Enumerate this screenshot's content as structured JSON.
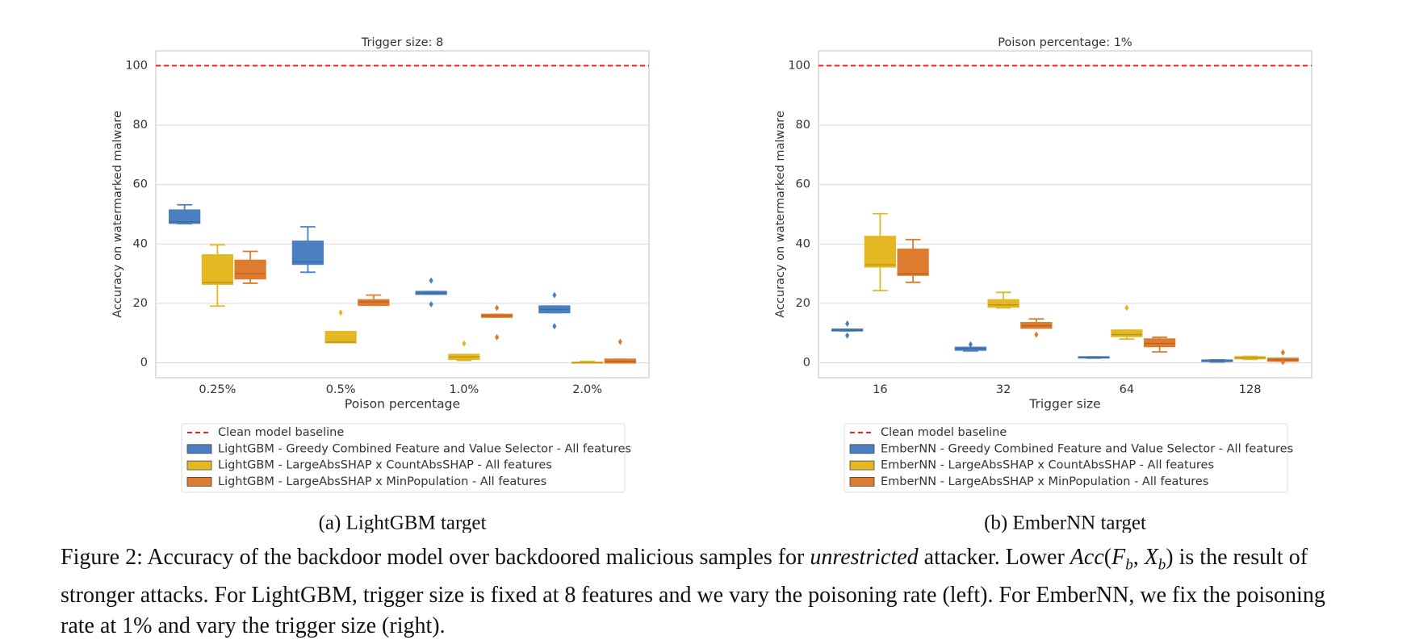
{
  "chart_data": [
    {
      "type": "box",
      "title": "Trigger size: 8",
      "xlabel": "Poison percentage",
      "ylabel": "Accuracy on watermarked malware",
      "subcaption": "(a) LightGBM target",
      "categories": [
        "0.25%",
        "0.5%",
        "1.0%",
        "2.0%"
      ],
      "ylim": [
        -5,
        105
      ],
      "yticks": [
        0,
        20,
        40,
        60,
        80,
        100
      ],
      "grid": true,
      "baseline": {
        "name": "Clean model baseline",
        "value": 100,
        "color": "#e8201e"
      },
      "series": [
        {
          "name": "LightGBM - Greedy Combined Feature and Value Selector - All features",
          "color": "#4a80c1",
          "boxes": [
            {
              "min": 46.8,
              "q1": 47,
              "median": 47.5,
              "q3": 51.4,
              "max": 53.2,
              "outliers": []
            },
            {
              "min": 30.5,
              "q1": 33.2,
              "median": 34,
              "q3": 40.9,
              "max": 45.8,
              "outliers": []
            },
            {
              "min": 23.1,
              "q1": 23.1,
              "median": 23.5,
              "q3": 24,
              "max": 24,
              "outliers": [
                27.7,
                19.7
              ]
            },
            {
              "min": 16.9,
              "q1": 16.9,
              "median": 18,
              "q3": 19.1,
              "max": 19.1,
              "outliers": [
                22.8,
                12.3
              ]
            }
          ]
        },
        {
          "name": "LightGBM - LargeAbsSHAP x CountAbsSHAP - All features",
          "color": "#e4b823",
          "boxes": [
            {
              "min": 19.1,
              "q1": 26.5,
              "median": 27,
              "q3": 36.3,
              "max": 39.7,
              "outliers": []
            },
            {
              "min": 6.8,
              "q1": 6.8,
              "median": 7,
              "q3": 10.5,
              "max": 10.5,
              "outliers": [
                16.9
              ]
            },
            {
              "min": 0.8,
              "q1": 1.2,
              "median": 2,
              "q3": 2.8,
              "max": 2.8,
              "outliers": [
                6.5
              ]
            },
            {
              "min": 0,
              "q1": 0,
              "median": 0,
              "q3": 0.2,
              "max": 0.5,
              "outliers": []
            }
          ]
        },
        {
          "name": "LightGBM - LargeAbsSHAP x MinPopulation - All features",
          "color": "#de7b2e",
          "boxes": [
            {
              "min": 26.8,
              "q1": 28.3,
              "median": 30,
              "q3": 34.5,
              "max": 37.5,
              "outliers": []
            },
            {
              "min": 19.4,
              "q1": 19.4,
              "median": 20.5,
              "q3": 21.2,
              "max": 22.8,
              "outliers": []
            },
            {
              "min": 15.4,
              "q1": 15.4,
              "median": 15.8,
              "q3": 16.3,
              "max": 16.3,
              "outliers": [
                18.5,
                8.6
              ]
            },
            {
              "min": 0,
              "q1": 0,
              "median": 0.5,
              "q3": 1.2,
              "max": 1.2,
              "outliers": [
                7.1
              ]
            }
          ]
        }
      ]
    },
    {
      "type": "box",
      "title": "Poison percentage: 1%",
      "xlabel": "Trigger size",
      "ylabel": "Accuracy on watermarked malware",
      "subcaption": "(b) EmberNN target",
      "categories": [
        "16",
        "32",
        "64",
        "128"
      ],
      "ylim": [
        -5,
        105
      ],
      "yticks": [
        0,
        20,
        40,
        60,
        80,
        100
      ],
      "grid": true,
      "baseline": {
        "name": "Clean model baseline",
        "value": 100,
        "color": "#e8201e"
      },
      "series": [
        {
          "name": "EmberNN - Greedy Combined Feature and Value Selector - All features",
          "color": "#4a80c1",
          "boxes": [
            {
              "min": 10.8,
              "q1": 10.8,
              "median": 11,
              "q3": 11.3,
              "max": 11.3,
              "outliers": [
                13.2,
                9.2
              ]
            },
            {
              "min": 4,
              "q1": 4.3,
              "median": 4.8,
              "q3": 5.2,
              "max": 5.2,
              "outliers": [
                6.2
              ]
            },
            {
              "min": 1.6,
              "q1": 1.7,
              "median": 1.8,
              "q3": 2,
              "max": 2,
              "outliers": []
            },
            {
              "min": 0.3,
              "q1": 0.5,
              "median": 0.7,
              "q3": 0.9,
              "max": 1,
              "outliers": []
            }
          ]
        },
        {
          "name": "EmberNN - LargeAbsSHAP x CountAbsSHAP - All features",
          "color": "#e4b823",
          "boxes": [
            {
              "min": 24.3,
              "q1": 32.3,
              "median": 33,
              "q3": 42.5,
              "max": 50.2,
              "outliers": []
            },
            {
              "min": 18.5,
              "q1": 18.8,
              "median": 19.5,
              "q3": 21.2,
              "max": 23.7,
              "outliers": []
            },
            {
              "min": 8,
              "q1": 8.9,
              "median": 9.5,
              "q3": 11,
              "max": 11,
              "outliers": [
                18.5
              ]
            },
            {
              "min": 1.2,
              "q1": 1.4,
              "median": 1.7,
              "q3": 2,
              "max": 2.2,
              "outliers": []
            }
          ]
        },
        {
          "name": "EmberNN - LargeAbsSHAP x MinPopulation - All features",
          "color": "#de7b2e",
          "boxes": [
            {
              "min": 27.1,
              "q1": 29.5,
              "median": 30,
              "q3": 38.2,
              "max": 41.5,
              "outliers": []
            },
            {
              "min": 11.7,
              "q1": 11.7,
              "median": 12.5,
              "q3": 13.5,
              "max": 14.8,
              "outliers": [
                9.5
              ]
            },
            {
              "min": 3.7,
              "q1": 5.5,
              "median": 6.5,
              "q3": 8,
              "max": 8.6,
              "outliers": []
            },
            {
              "min": 0.6,
              "q1": 0.6,
              "median": 1,
              "q3": 1.5,
              "max": 1.5,
              "outliers": [
                3.5,
                0.3
              ]
            }
          ]
        }
      ]
    }
  ],
  "caption": {
    "parts": [
      "Figure 2: Accuracy of the backdoor model over backdoored malicious samples for ",
      "unrestricted",
      " attacker. Lower ",
      "Acc",
      "(",
      "F",
      "b",
      ", ",
      "X",
      "b",
      ") is the result of stronger attacks. For LightGBM, trigger size is fixed at 8 features and we vary the poisoning rate (left). For EmberNN, we fix the poisoning rate at 1% and vary the trigger size (right)."
    ]
  }
}
